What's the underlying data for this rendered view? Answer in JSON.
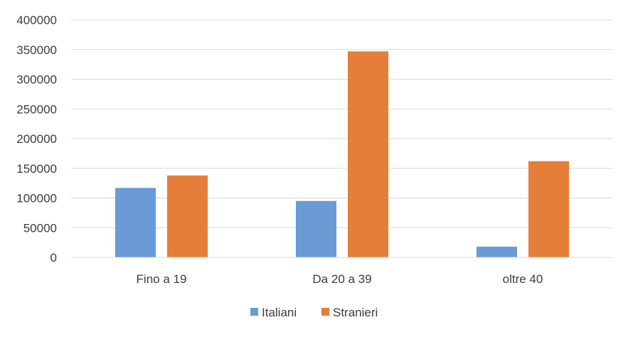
{
  "chart_data": {
    "type": "bar",
    "title": "",
    "xlabel": "",
    "ylabel": "",
    "categories": [
      "Fino a 19",
      "Da 20 a 39",
      "oltre 40"
    ],
    "series": [
      {
        "name": "Italiani",
        "color": "#6A9BD5",
        "values": [
          117000,
          95000,
          18000
        ]
      },
      {
        "name": "Stranieri",
        "color": "#E57E3A",
        "values": [
          138000,
          347000,
          162000
        ]
      }
    ],
    "ylim": [
      0,
      400000
    ],
    "yticks": [
      "0",
      "50000",
      "100000",
      "150000",
      "200000",
      "250000",
      "300000",
      "350000",
      "400000"
    ],
    "grid": true,
    "legend_position": "bottom"
  }
}
